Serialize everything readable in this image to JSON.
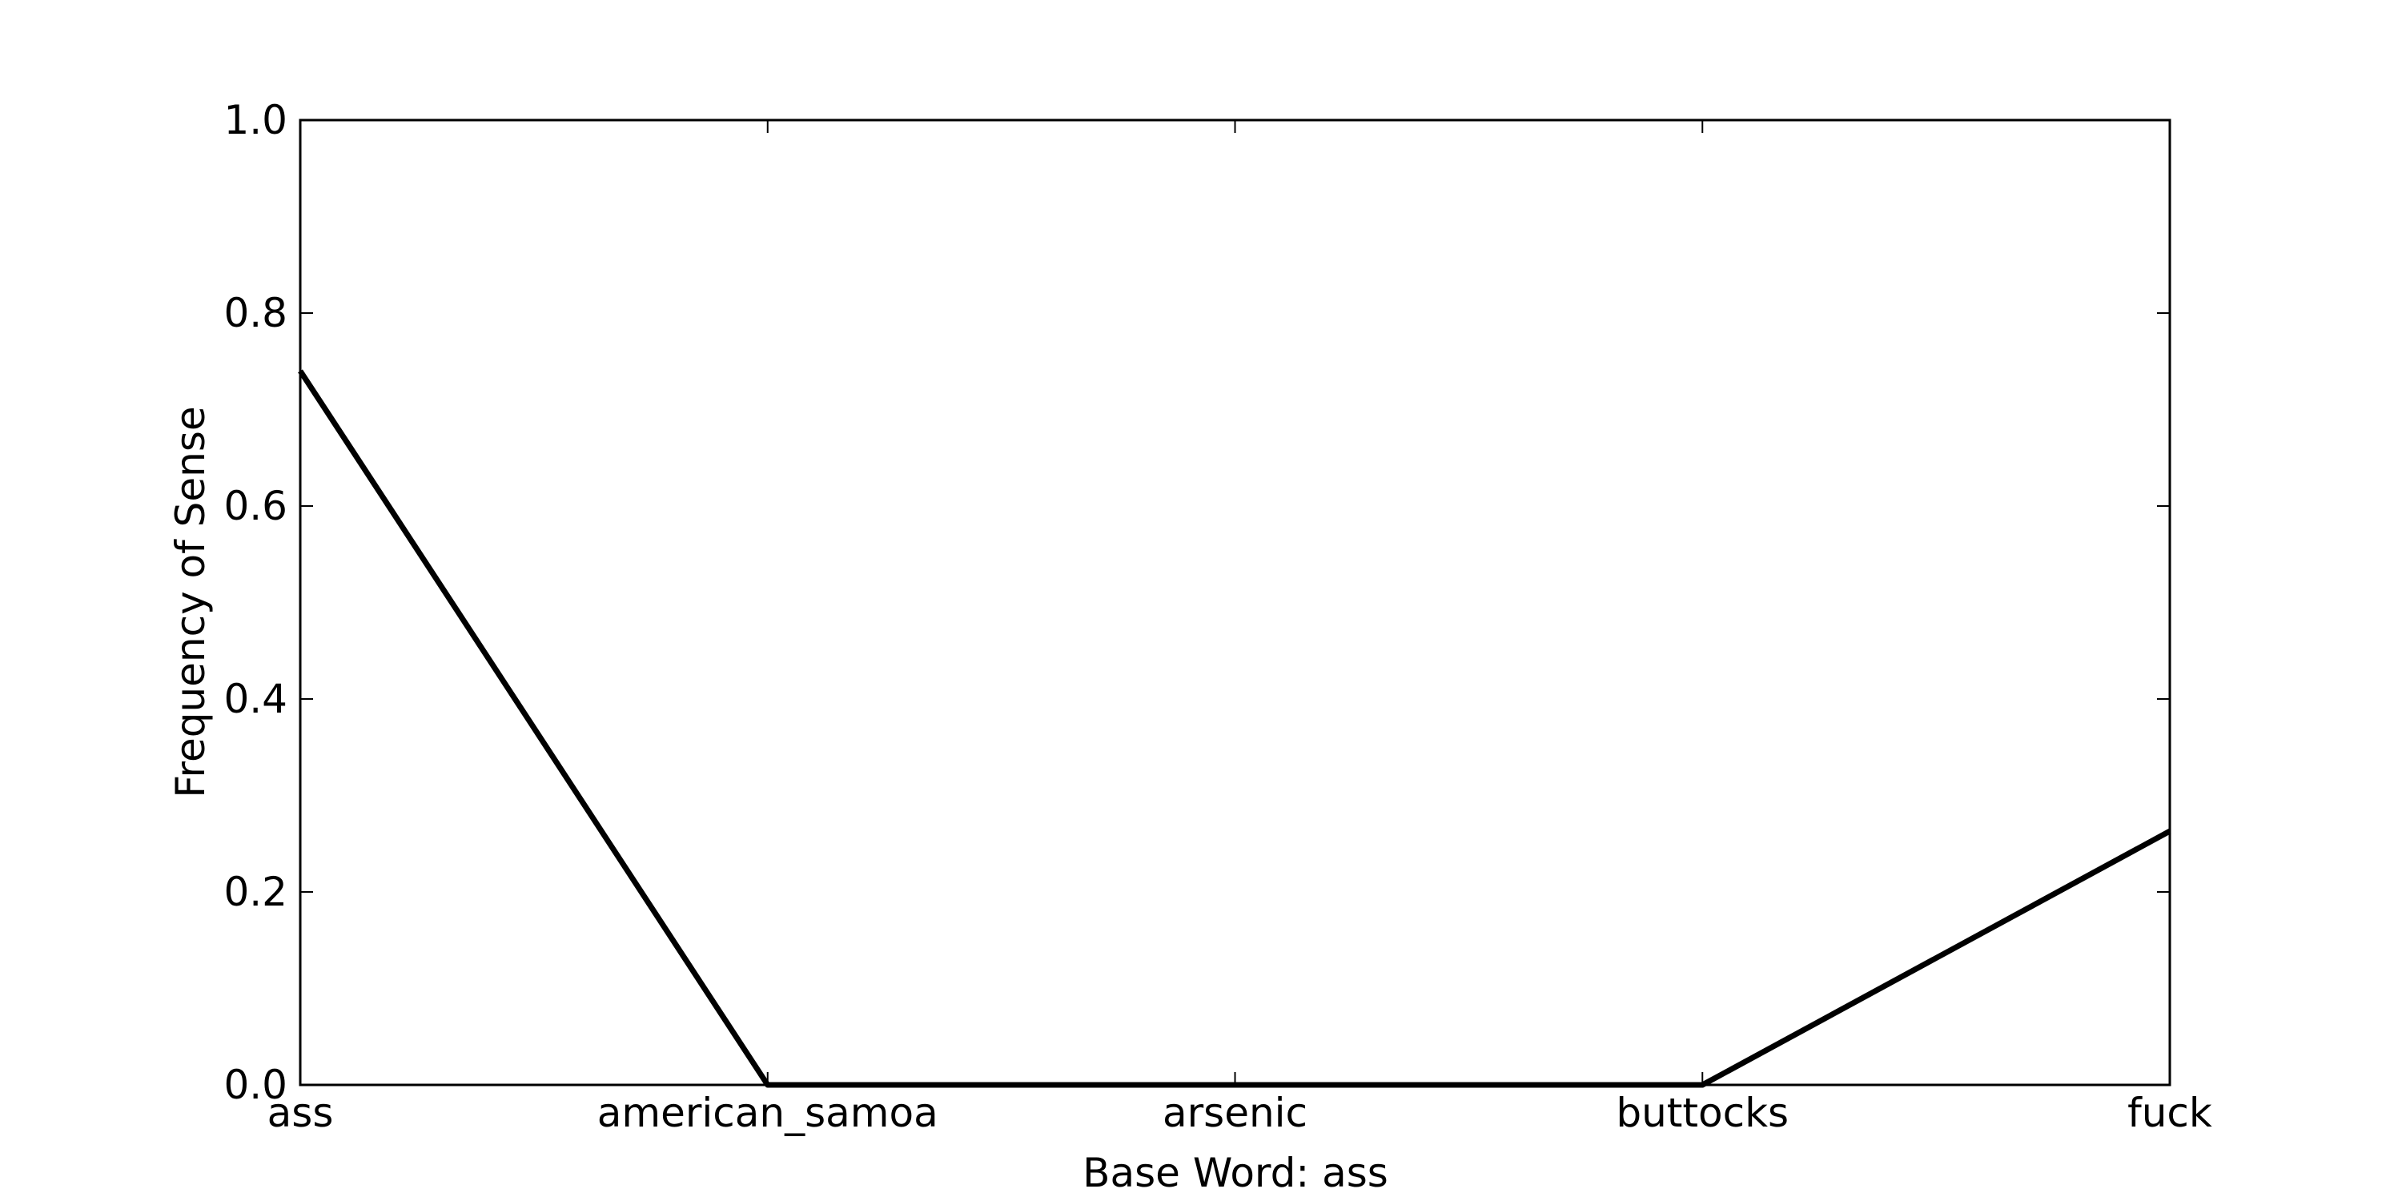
{
  "chart_data": {
    "type": "line",
    "title": "",
    "xlabel": "Base Word: ass",
    "ylabel": "Frequency of Sense",
    "categories": [
      "ass",
      "american_samoa",
      "arsenic",
      "buttocks",
      "fuck"
    ],
    "series": [
      {
        "values": [
          0.74,
          0.0,
          0.0,
          0.0,
          0.263
        ]
      }
    ],
    "ylim": [
      0,
      1
    ],
    "yticks": [
      0.0,
      0.2,
      0.4,
      0.6,
      0.8,
      1.0
    ],
    "ytick_labels": [
      "0.0",
      "0.2",
      "0.4",
      "0.6",
      "0.8",
      "1.0"
    ],
    "grid": false,
    "line_color": "#000000"
  }
}
